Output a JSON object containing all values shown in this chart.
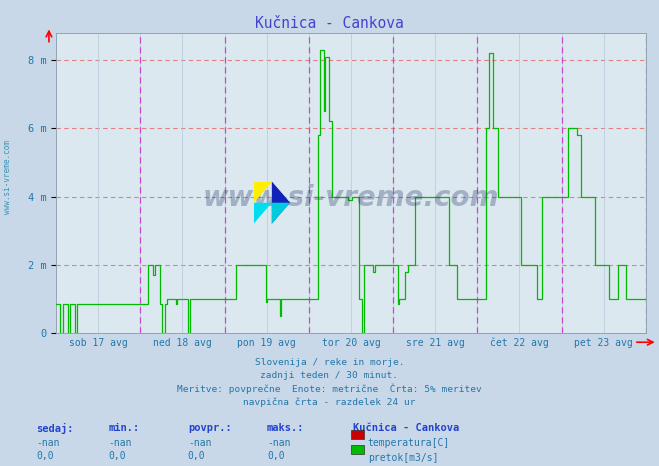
{
  "title": "Kučnica - Cankova",
  "bg_color": "#c8d8e8",
  "plot_bg_color": "#dce8f0",
  "grid_color_h": "#e08080",
  "grid_color_v": "#b8c8d8",
  "dashed_vline_color": "#cc44cc",
  "flow_color": "#00bb00",
  "temp_color": "#cc0000",
  "ylim": [
    0,
    8.8
  ],
  "yticks": [
    0,
    2,
    4,
    6,
    8
  ],
  "ytick_labels": [
    "0",
    "2 m",
    "4 m",
    "6 m",
    "8 m"
  ],
  "n_points": 336,
  "day_labels": [
    "sob 17 avg",
    "ned 18 avg",
    "pon 19 avg",
    "tor 20 avg",
    "sre 21 avg",
    "čet 22 avg",
    "pet 23 avg"
  ],
  "footer_lines": [
    "Slovenija / reke in morje.",
    "zadnji teden / 30 minut.",
    "Meritve: povprečne  Enote: metrične  Črta: 5% meritev",
    "navpična črta - razdelek 24 ur"
  ],
  "table_headers": [
    "sedaj:",
    "min.:",
    "povpr.:",
    "maks.:"
  ],
  "table_row1": [
    "-nan",
    "-nan",
    "-nan",
    "-nan"
  ],
  "table_row2": [
    "0,0",
    "0,0",
    "0,0",
    "0,0"
  ],
  "legend_title": "Kučnica - Cankova",
  "legend_items": [
    "temperatura[C]",
    "pretok[m3/s]"
  ],
  "legend_colors": [
    "#cc0000",
    "#00bb00"
  ],
  "watermark_text": "www.si-vreme.com",
  "watermark_color": "#1a3060",
  "watermark_alpha": 0.3,
  "sidebar_text": "www.si-vreme.com",
  "sidebar_color": "#2288aa",
  "title_color": "#4444cc",
  "label_color": "#2277aa",
  "header_color": "#2244cc"
}
